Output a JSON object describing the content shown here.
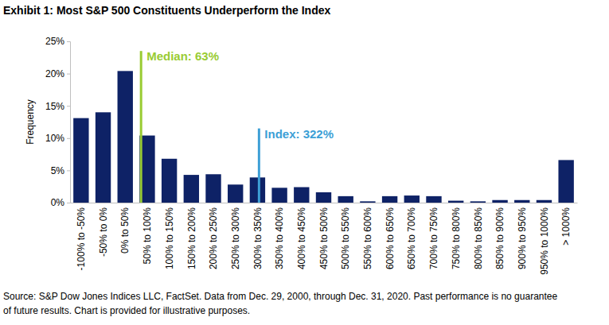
{
  "chart_data": {
    "type": "bar",
    "title": "Exhibit 1: Most S&P 500 Constituents Underperform the Index",
    "y_label": "Frequency",
    "categories": [
      "-100% to -50%",
      "-50% to 0%",
      "0% to 50%",
      "50% to 100%",
      "100% to 150%",
      "150% to 200%",
      "200% to 250%",
      "250% to 300%",
      "300% to 350%",
      "350% to 400%",
      "400% to 450%",
      "450% to 500%",
      "500% to 550%",
      "550% to 600%",
      "600% to 650%",
      "650% to 700%",
      "700% to 750%",
      "750% to 800%",
      "800% to 850%",
      "850% to 900%",
      "900% to 950%",
      "950% to 1000%",
      "> 1000%"
    ],
    "values": [
      13.1,
      14.0,
      20.4,
      10.4,
      6.8,
      4.3,
      4.4,
      2.8,
      3.9,
      2.3,
      2.4,
      1.6,
      1.0,
      0.2,
      1.0,
      1.1,
      1.0,
      0.3,
      0.2,
      0.4,
      0.4,
      0.4,
      6.6
    ],
    "color": "#0e2266",
    "ylim": [
      0,
      25
    ],
    "yticks": [
      {
        "value": 0,
        "label": "0%"
      },
      {
        "value": 5,
        "label": "5%"
      },
      {
        "value": 10,
        "label": "10%"
      },
      {
        "value": 15,
        "label": "15%"
      },
      {
        "value": 20,
        "label": "20%"
      },
      {
        "value": 25,
        "label": "25%"
      }
    ],
    "grid": false,
    "annotations": [
      {
        "text": "Median: 63%",
        "category": "50% to 100%",
        "color": "#99cc33"
      },
      {
        "text": "Index: 322%",
        "category": "300% to 350%",
        "color": "#3d9fd6"
      }
    ],
    "source": [
      "Source: S&P Dow Jones Indices LLC, FactSet. Data from Dec. 29, 2000, through Dec. 31, 2020. Past performance is no guarantee",
      "of future results. Chart is provided for illustrative purposes."
    ]
  }
}
